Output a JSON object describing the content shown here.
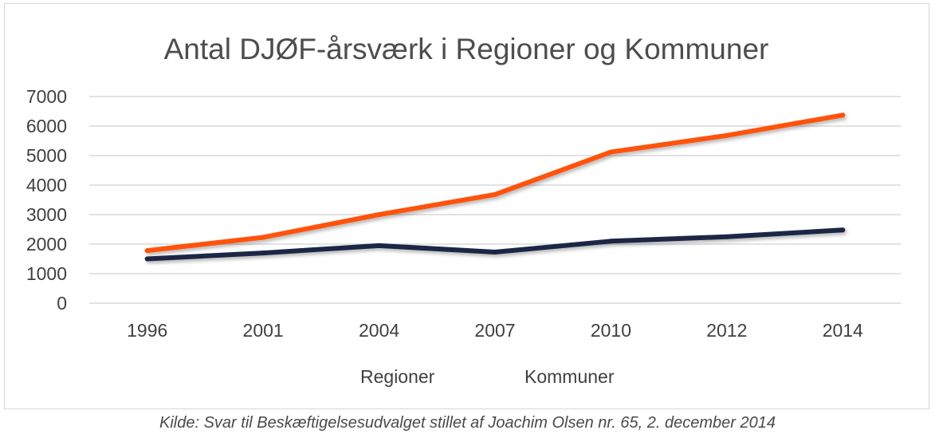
{
  "chart_data": {
    "type": "line",
    "title": "Antal DJØF-årsværk i Regioner og Kommuner",
    "categories": [
      "1996",
      "2001",
      "2004",
      "2007",
      "2010",
      "2012",
      "2014"
    ],
    "series": [
      {
        "name": "Regioner",
        "color": "#1b2544",
        "values": [
          1500,
          1700,
          1950,
          1730,
          2100,
          2250,
          2480
        ]
      },
      {
        "name": "Kommuner",
        "color": "#ff5208",
        "values": [
          1780,
          2230,
          3000,
          3680,
          5120,
          5680,
          6370
        ]
      }
    ],
    "ylim": [
      0,
      7000
    ],
    "yticks": [
      0,
      1000,
      2000,
      3000,
      4000,
      5000,
      6000,
      7000
    ],
    "grid": true,
    "legend_position": "bottom"
  },
  "caption": "Kilde: Svar til Beskæftigelsesudvalget stillet af Joachim Olsen nr. 65, 2. december 2014"
}
